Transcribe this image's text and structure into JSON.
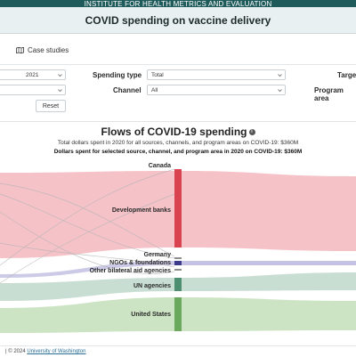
{
  "header": {
    "org": "INSTITUTE FOR HEALTH METRICS AND EVALUATION",
    "title": "COVID spending on vaccine delivery"
  },
  "tabs": {
    "case_studies": "Case studies"
  },
  "filters": {
    "year_value": "2021",
    "spending_type_label": "Spending type",
    "spending_type_value": "Total",
    "channel_label": "Channel",
    "channel_value": "All",
    "target_label": "Targe",
    "program_area_label": "Program area",
    "reset_label": "Reset"
  },
  "chart": {
    "title": "Flows of COVID-19 spending",
    "info_icon": "i",
    "subtitle1": "Total dollars spent in 2020 for all sources, channels, and program areas on COVID-19: $360M",
    "subtitle2": "Dollars spent for selected source, channel, and program area in 2020 on COVID-19: $360M"
  },
  "chart_data": {
    "type": "sankey",
    "title": "Flows of COVID-19 spending",
    "channels": [
      {
        "name": "Canada",
        "color": "#d9434f"
      },
      {
        "name": "Development banks",
        "color": "#d9434f"
      },
      {
        "name": "Germany",
        "color": "#8e8e8e"
      },
      {
        "name": "NGOs & foundations",
        "color": "#3d3a8c"
      },
      {
        "name": "Other bilateral aid agencies",
        "color": "#8e8e8e"
      },
      {
        "name": "UN agencies",
        "color": "#4e8f72"
      },
      {
        "name": "United States",
        "color": "#6aa85e"
      }
    ]
  },
  "footer": {
    "copyright": "© 2024",
    "link": "University of Washington"
  }
}
